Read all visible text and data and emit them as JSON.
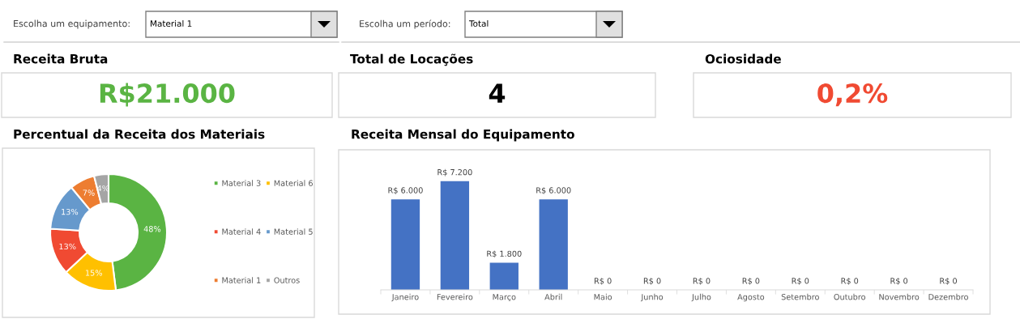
{
  "chart_data": [
    {
      "type": "other",
      "annotations": [
        "Escolha um equipamento:",
        "Material 1",
        "Escolha um período:",
        "Total"
      ]
    },
    {
      "type": "other",
      "title": "Receita Bruta",
      "annotations": [
        "R$21.000"
      ],
      "color": "#5ab443"
    },
    {
      "type": "other",
      "title": "Total de Locações",
      "annotations": [
        "4"
      ],
      "color": "#000000"
    },
    {
      "type": "other",
      "title": "Ociosidade",
      "annotations": [
        "0,2%"
      ],
      "color": "#f04a32"
    },
    {
      "type": "donut",
      "title": "Percentual da Receita dos Materiais",
      "categories": [
        "Material 3",
        "Material 6",
        "Material 4",
        "Material 5",
        "Material 1",
        "Outros"
      ],
      "values": [
        48,
        15,
        13,
        13,
        7,
        4
      ],
      "colors": [
        "#5ab443",
        "#ffc000",
        "#f04a32",
        "#6699cc",
        "#ed7d31",
        "#a5a5a5"
      ],
      "value_labels": [
        "48%",
        "15%",
        "13%",
        "13%",
        "7%",
        "4%"
      ],
      "legend": "right"
    },
    {
      "type": "bar",
      "title": "Receita Mensal do Equipamento",
      "categories": [
        "Janeiro",
        "Fevereiro",
        "Março",
        "Abril",
        "Maio",
        "Junho",
        "Julho",
        "Agosto",
        "Setembro",
        "Outubro",
        "Novembro",
        "Dezembro"
      ],
      "values": [
        6000,
        7200,
        1800,
        6000,
        0,
        0,
        0,
        0,
        0,
        0,
        0,
        0
      ],
      "color": "#4472c4",
      "value_labels": [
        "R$ 6.000",
        "R$ 7.200",
        "R$ 1.800",
        "R$ 6.000",
        "R$ 0",
        "R$ 0",
        "R$ 0",
        "R$ 0",
        "R$ 0",
        "R$ 0",
        "R$ 0",
        "R$ 0"
      ],
      "grid": false
    }
  ]
}
